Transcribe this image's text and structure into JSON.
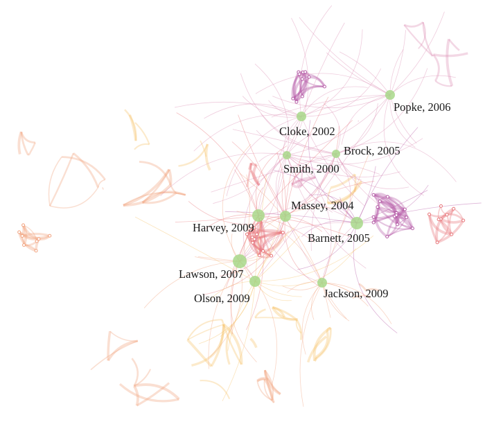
{
  "colors": {
    "orange": "#f2a27e",
    "yellow": "#f7c46a",
    "red": "#e8767a",
    "pink": "#dc8fb4",
    "purple": "#b55aa6",
    "key_node": "#a8d88a"
  },
  "key_nodes": [
    {
      "id": "popke",
      "label": "Popke, 2006"
    },
    {
      "id": "cloke",
      "label": "Cloke, 2002"
    },
    {
      "id": "brock",
      "label": "Brock, 2005"
    },
    {
      "id": "smith",
      "label": "Smith, 2000"
    },
    {
      "id": "massey",
      "label": "Massey, 2004"
    },
    {
      "id": "harvey",
      "label": "Harvey, 2009"
    },
    {
      "id": "barnett",
      "label": "Barnett, 2005"
    },
    {
      "id": "lawson",
      "label": "Lawson, 2007"
    },
    {
      "id": "olson",
      "label": "Olson, 2009"
    },
    {
      "id": "jackson",
      "label": "Jackson, 2009"
    }
  ]
}
